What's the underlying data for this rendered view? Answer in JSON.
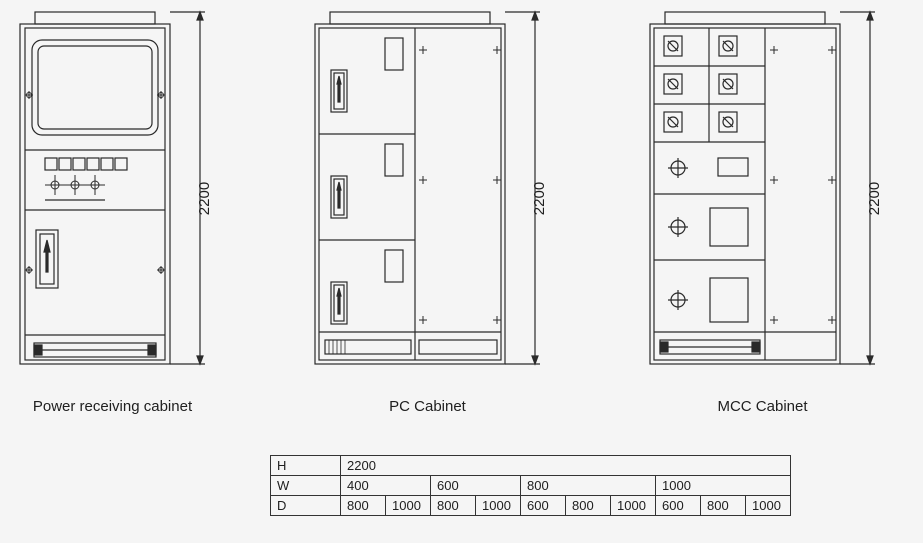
{
  "stroke": "#2a2a2a",
  "stroke_width": 1.2,
  "bg": "#f5f5f5",
  "cabinets": [
    {
      "label": "Power receiving cabinet",
      "dim": "2200"
    },
    {
      "label": "PC  Cabinet",
      "dim": "2200"
    },
    {
      "label": "MCC Cabinet",
      "dim": "2200"
    }
  ],
  "table": {
    "rows": [
      {
        "hdr": "H",
        "cells": [
          {
            "v": "2200",
            "span": 11
          }
        ]
      },
      {
        "hdr": "W",
        "cells": [
          {
            "v": "400",
            "span": 2
          },
          {
            "v": "600",
            "span": 3
          },
          {
            "v": "800",
            "span": 3
          },
          {
            "v": "1000",
            "span": 3
          }
        ]
      },
      {
        "hdr": "D",
        "cells": [
          {
            "v": "800",
            "span": 1
          },
          {
            "v": "1000",
            "span": 1
          },
          {
            "v": "800",
            "span": 1
          },
          {
            "v": "1000",
            "span": 2
          },
          {
            "v": "600",
            "span": 1
          },
          {
            "v": "800",
            "span": 1
          },
          {
            "v": "1000",
            "span": 1
          },
          {
            "v": "600",
            "span": 1
          },
          {
            "v": "800",
            "span": 1
          },
          {
            "v": "1000",
            "span": 1
          }
        ]
      }
    ]
  }
}
